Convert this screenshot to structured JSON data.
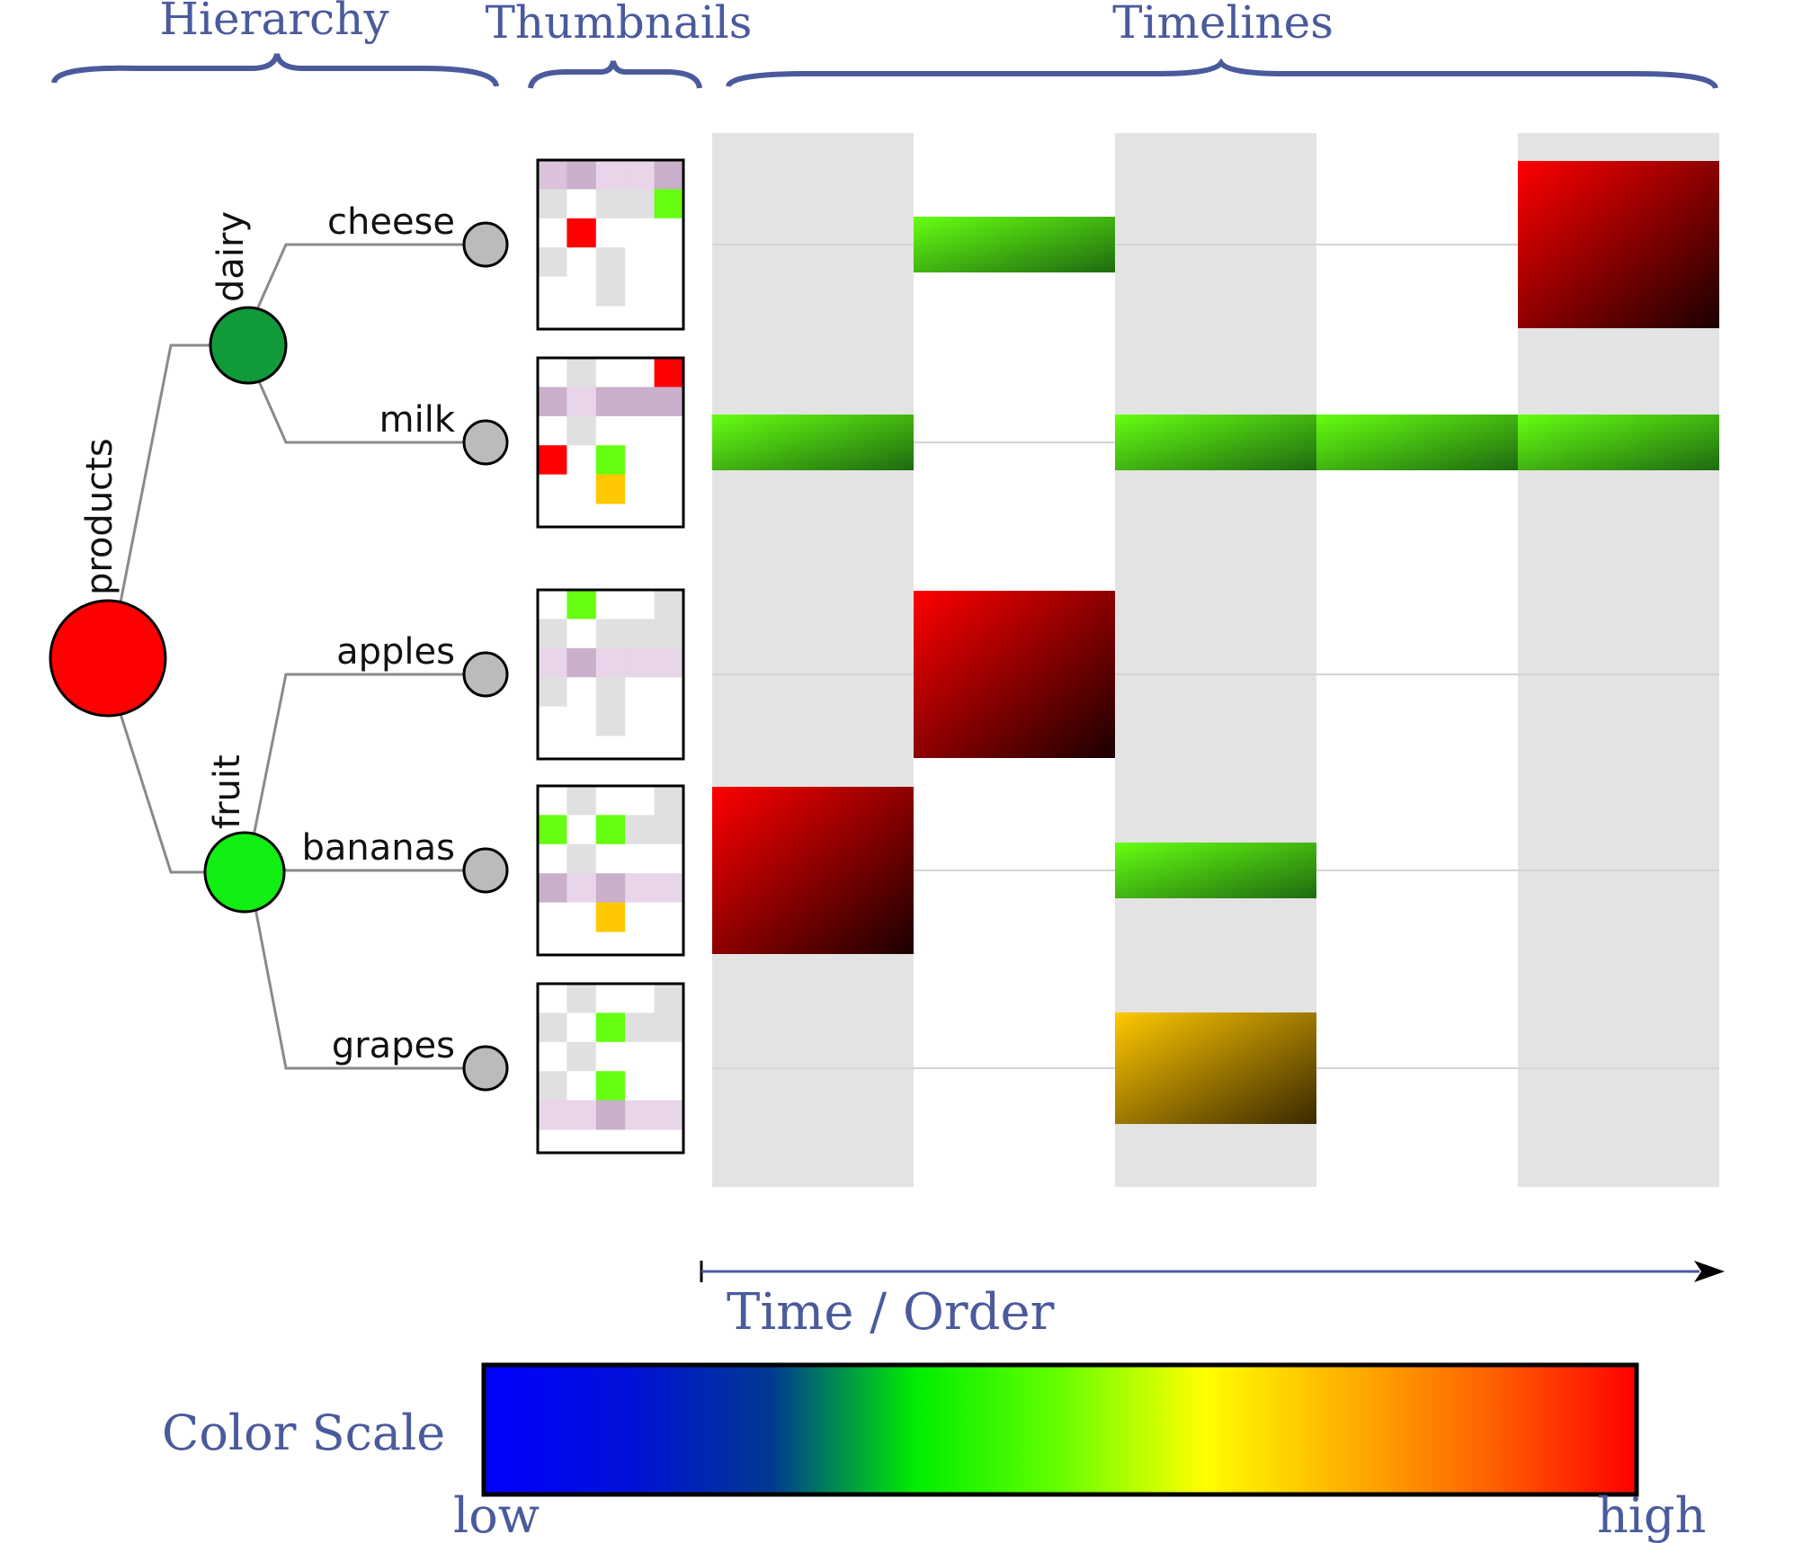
{
  "sections": {
    "hierarchy": "Hierarchy",
    "thumbnails": "Thumbnails",
    "timelines": "Timelines"
  },
  "tree": {
    "root": {
      "label": "products",
      "color": "#ff0000"
    },
    "groups": [
      {
        "label": "dairy",
        "color": "#119a3a"
      },
      {
        "label": "fruit",
        "color": "#11ee11"
      }
    ],
    "leaf_color": "#bbbbbb"
  },
  "leaves": [
    {
      "label": "cheese",
      "thumbnail": [
        [
          "#d9c2da",
          "#c9afc9",
          "#e8d5ea",
          "#e8d5ea",
          "#c9afc9"
        ],
        [
          "#e0e0e0",
          "#ffffff",
          "#e0e0e0",
          "#e0e0e0",
          "#66ff11"
        ],
        [
          "#ffffff",
          "#ff0000",
          "#ffffff",
          "#ffffff",
          "#ffffff"
        ],
        [
          "#e0e0e0",
          "#ffffff",
          "#e0e0e0",
          "#ffffff",
          "#ffffff"
        ],
        [
          "#ffffff",
          "#ffffff",
          "#e0e0e0",
          "#ffffff",
          "#ffffff"
        ]
      ],
      "timeline": [
        {
          "slot": 1,
          "level": "medium",
          "fill": "green"
        },
        {
          "slot": 4,
          "level": "high",
          "fill": "red"
        }
      ]
    },
    {
      "label": "milk",
      "thumbnail": [
        [
          "#ffffff",
          "#e0e0e0",
          "#ffffff",
          "#ffffff",
          "#ff0000"
        ],
        [
          "#c9afc9",
          "#e8d5ea",
          "#c9afc9",
          "#c9afc9",
          "#c9afc9"
        ],
        [
          "#ffffff",
          "#e0e0e0",
          "#ffffff",
          "#ffffff",
          "#ffffff"
        ],
        [
          "#ff0000",
          "#ffffff",
          "#66ff11",
          "#ffffff",
          "#ffffff"
        ],
        [
          "#ffffff",
          "#ffffff",
          "#ffc800",
          "#ffffff",
          "#ffffff"
        ]
      ],
      "timeline": [
        {
          "slot": 0,
          "level": "medium",
          "fill": "green"
        },
        {
          "slot": 2,
          "level": "medium",
          "fill": "green"
        },
        {
          "slot": 3,
          "level": "medium",
          "fill": "green"
        },
        {
          "slot": 4,
          "level": "medium",
          "fill": "green"
        }
      ]
    },
    {
      "label": "apples",
      "thumbnail": [
        [
          "#ffffff",
          "#66ff11",
          "#ffffff",
          "#ffffff",
          "#e0e0e0"
        ],
        [
          "#e0e0e0",
          "#ffffff",
          "#e0e0e0",
          "#e0e0e0",
          "#e0e0e0"
        ],
        [
          "#e8d5ea",
          "#c9afc9",
          "#e8d5ea",
          "#e8d5ea",
          "#e8d5ea"
        ],
        [
          "#e0e0e0",
          "#ffffff",
          "#e0e0e0",
          "#ffffff",
          "#ffffff"
        ],
        [
          "#ffffff",
          "#ffffff",
          "#e0e0e0",
          "#ffffff",
          "#ffffff"
        ]
      ],
      "timeline": [
        {
          "slot": 1,
          "level": "high",
          "fill": "red"
        }
      ]
    },
    {
      "label": "bananas",
      "thumbnail": [
        [
          "#ffffff",
          "#e0e0e0",
          "#ffffff",
          "#ffffff",
          "#e0e0e0"
        ],
        [
          "#66ff11",
          "#ffffff",
          "#66ff11",
          "#e0e0e0",
          "#e0e0e0"
        ],
        [
          "#ffffff",
          "#e0e0e0",
          "#ffffff",
          "#ffffff",
          "#ffffff"
        ],
        [
          "#c9afc9",
          "#e8d5ea",
          "#c9afc9",
          "#e8d5ea",
          "#e8d5ea"
        ],
        [
          "#ffffff",
          "#ffffff",
          "#ffc800",
          "#ffffff",
          "#ffffff"
        ]
      ],
      "timeline": [
        {
          "slot": 0,
          "level": "high",
          "fill": "red"
        },
        {
          "slot": 2,
          "level": "medium",
          "fill": "green"
        }
      ]
    },
    {
      "label": "grapes",
      "thumbnail": [
        [
          "#ffffff",
          "#e0e0e0",
          "#ffffff",
          "#ffffff",
          "#e0e0e0"
        ],
        [
          "#e0e0e0",
          "#ffffff",
          "#66ff11",
          "#e0e0e0",
          "#e0e0e0"
        ],
        [
          "#ffffff",
          "#e0e0e0",
          "#ffffff",
          "#ffffff",
          "#ffffff"
        ],
        [
          "#e0e0e0",
          "#ffffff",
          "#66ff11",
          "#ffffff",
          "#ffffff"
        ],
        [
          "#e8d5ea",
          "#e8d5ea",
          "#c9afc9",
          "#e8d5ea",
          "#e8d5ea"
        ]
      ],
      "timeline": [
        {
          "slot": 2,
          "level": "medium-high",
          "fill": "orange"
        }
      ]
    }
  ],
  "timeline_fill_colors": {
    "red": [
      "#ff0000",
      "#1a0000"
    ],
    "green": [
      "#66ff11",
      "#1e6a10"
    ],
    "orange": [
      "#ffc800",
      "#3a2800"
    ]
  },
  "axis": {
    "label": "Time / Order",
    "slots": 5
  },
  "color_scale": {
    "title": "Color Scale",
    "low": "low",
    "high": "high",
    "stops": [
      "#0000ff",
      "#0010d8",
      "#003a90",
      "#00ee00",
      "#66ff00",
      "#ffff00",
      "#ffb000",
      "#ff6000",
      "#ff0000"
    ]
  }
}
